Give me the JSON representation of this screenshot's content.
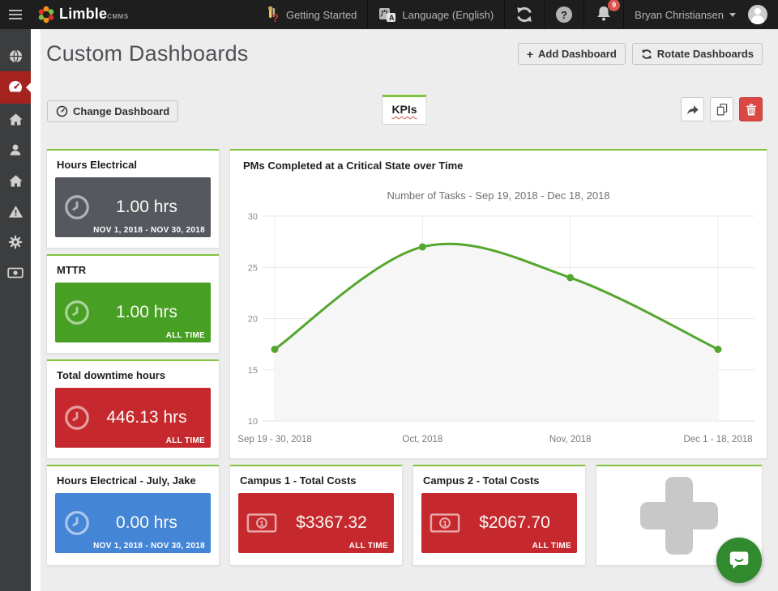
{
  "navbar": {
    "brand": "Limble",
    "brand_suffix": "CMMS",
    "getting_started": "Getting Started",
    "language": "Language (English)",
    "notification_count": "9",
    "user_name": "Bryan Christiansen"
  },
  "sidebar": {
    "items": [
      {
        "icon": "globe-icon",
        "active": false
      },
      {
        "icon": "dashboards-icon",
        "active": true
      },
      {
        "icon": "home-icon",
        "active": false
      },
      {
        "icon": "user-icon",
        "active": false
      },
      {
        "icon": "building-icon",
        "active": false
      },
      {
        "icon": "warning-icon",
        "active": false
      },
      {
        "icon": "gear-icon",
        "active": false
      },
      {
        "icon": "money-icon",
        "active": false
      }
    ]
  },
  "header": {
    "title": "Custom Dashboards",
    "add_dashboard": "Add Dashboard",
    "rotate_dashboards": "Rotate Dashboards"
  },
  "toolbar": {
    "change_dashboard": "Change Dashboard",
    "tab": "KPIs"
  },
  "icons": {
    "plus": "+",
    "question": "?",
    "language_glyph": "A"
  },
  "widgets": {
    "hours_electrical": {
      "title": "Hours Electrical",
      "value": "1.00 hrs",
      "period": "NOV 1, 2018 - NOV 30, 2018",
      "color": "#55585e"
    },
    "mttr": {
      "title": "MTTR",
      "value": "1.00 hrs",
      "period": "ALL TIME",
      "color": "#47a023"
    },
    "total_downtime": {
      "title": "Total downtime hours",
      "value": "446.13 hrs",
      "period": "ALL TIME",
      "color": "#c5292e"
    },
    "hours_electrical_july": {
      "title": "Hours Electrical - July, Jake",
      "value": "0.00 hrs",
      "period": "NOV 1, 2018 - NOV 30, 2018",
      "color": "#4585d6"
    },
    "campus1": {
      "title": "Campus 1 - Total Costs",
      "value": "$3367.32",
      "period": "ALL TIME",
      "color": "#c5292e"
    },
    "campus2": {
      "title": "Campus 2 - Total Costs",
      "value": "$2067.70",
      "period": "ALL TIME",
      "color": "#c5292e"
    }
  },
  "chart_data": {
    "type": "area",
    "title": "PMs Completed at a Critical State over Time",
    "subtitle": "Number of Tasks - Sep 19, 2018 - Dec 18, 2018",
    "categories": [
      "Sep 19 - 30, 2018",
      "Oct, 2018",
      "Nov, 2018",
      "Dec 1 - 18, 2018"
    ],
    "values": [
      17,
      27,
      24,
      17
    ],
    "xlabel": "",
    "ylabel": "Number of Tasks",
    "ylim": [
      10,
      30
    ],
    "yticks": [
      10,
      15,
      20,
      25,
      30
    ],
    "grid": true,
    "legend": "none",
    "line_color": "#55a62e",
    "point_color": "#55a62e",
    "fill_color": "#f6f6f6"
  },
  "colors": {
    "accent_green": "#82c341",
    "active_nav_red": "#a5231f",
    "danger_red": "#db4742",
    "chat_green": "#318a2e"
  }
}
